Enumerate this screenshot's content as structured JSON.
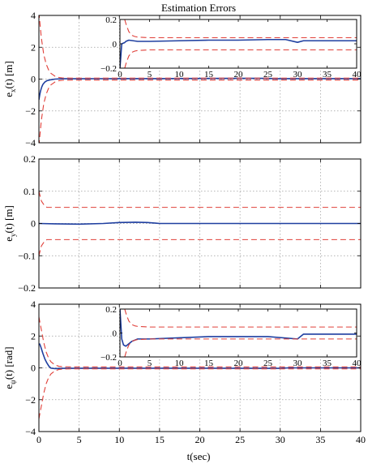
{
  "figure": {
    "title": "Estimation Errors",
    "xlabel": "t(sec)"
  },
  "colors": {
    "error": "#1f3fa0",
    "bound": "#e0403a",
    "grid": "#9a9a9a",
    "axis": "#000000"
  },
  "chart_data": [
    {
      "type": "line",
      "ylabel": {
        "base": "e",
        "sub": "x",
        "rest": "(t) [m]"
      },
      "xlim": [
        0,
        40
      ],
      "ylim": [
        -4,
        4
      ],
      "xticks": [
        "0",
        "5",
        "10",
        "15",
        "20",
        "25",
        "30",
        "35",
        "40"
      ],
      "yticks": [
        "−4",
        "−2",
        "0",
        "2",
        "4"
      ],
      "grid": true,
      "series": [
        {
          "role": "error",
          "style": "solid",
          "color": "#1f3fa0",
          "points": [
            [
              0,
              -1.3
            ],
            [
              0.1,
              -1.0
            ],
            [
              0.2,
              -0.75
            ],
            [
              0.35,
              -0.5
            ],
            [
              0.5,
              -0.33
            ],
            [
              0.75,
              -0.18
            ],
            [
              1,
              -0.1
            ],
            [
              1.5,
              -0.04
            ],
            [
              2,
              0.0
            ],
            [
              3,
              0.02
            ],
            [
              5,
              0.02
            ],
            [
              10,
              0.03
            ],
            [
              15,
              0.03
            ],
            [
              20,
              0.04
            ],
            [
              25,
              0.05
            ],
            [
              28,
              0.05
            ],
            [
              30,
              0.02
            ],
            [
              31,
              0.03
            ],
            [
              35,
              0.03
            ],
            [
              40,
              0.03
            ]
          ]
        },
        {
          "role": "bound-upper",
          "style": "dashed",
          "color": "#e0403a",
          "points": [
            [
              0,
              4.2
            ],
            [
              0.3,
              2.6
            ],
            [
              0.6,
              1.55
            ],
            [
              0.9,
              0.95
            ],
            [
              1.2,
              0.58
            ],
            [
              1.5,
              0.36
            ],
            [
              2,
              0.18
            ],
            [
              2.5,
              0.1
            ],
            [
              3,
              0.07
            ],
            [
              4,
              0.06
            ],
            [
              10,
              0.06
            ],
            [
              40,
              0.06
            ]
          ]
        },
        {
          "role": "bound-lower",
          "style": "dashed",
          "color": "#e0403a",
          "points": [
            [
              0,
              -4.2
            ],
            [
              0.3,
              -2.6
            ],
            [
              0.6,
              -1.55
            ],
            [
              0.9,
              -0.95
            ],
            [
              1.2,
              -0.58
            ],
            [
              1.5,
              -0.36
            ],
            [
              2,
              -0.18
            ],
            [
              2.5,
              -0.1
            ],
            [
              3,
              -0.07
            ],
            [
              4,
              -0.06
            ],
            [
              10,
              -0.06
            ],
            [
              40,
              -0.06
            ]
          ]
        }
      ],
      "inset": {
        "xlim": [
          0,
          40
        ],
        "ylim": [
          -0.2,
          0.2
        ],
        "xticks": [
          "0",
          "5",
          "10",
          "15",
          "20",
          "25",
          "30",
          "35",
          "40"
        ],
        "yticks": [
          "−0.2",
          "0",
          "0.2"
        ],
        "series": [
          {
            "role": "error",
            "style": "solid",
            "color": "#1f3fa0",
            "points": [
              [
                0,
                -0.2
              ],
              [
                0.3,
                0.0
              ],
              [
                0.8,
                0.01
              ],
              [
                1,
                0.02
              ],
              [
                1.5,
                0.03
              ],
              [
                3,
                0.02
              ],
              [
                5,
                0.02
              ],
              [
                10,
                0.025
              ],
              [
                15,
                0.03
              ],
              [
                20,
                0.03
              ],
              [
                25,
                0.035
              ],
              [
                28,
                0.035
              ],
              [
                30,
                0.012
              ],
              [
                31,
                0.025
              ],
              [
                35,
                0.025
              ],
              [
                40,
                0.025
              ]
            ]
          },
          {
            "role": "bound-upper",
            "style": "dashed",
            "color": "#e0403a",
            "points": [
              [
                0.8,
                0.2
              ],
              [
                1.1,
                0.15
              ],
              [
                1.5,
                0.1
              ],
              [
                2,
                0.07
              ],
              [
                2.5,
                0.06
              ],
              [
                3,
                0.055
              ],
              [
                5,
                0.05
              ],
              [
                40,
                0.05
              ]
            ]
          },
          {
            "role": "bound-lower",
            "style": "dashed",
            "color": "#e0403a",
            "points": [
              [
                0.8,
                -0.2
              ],
              [
                1.1,
                -0.15
              ],
              [
                1.5,
                -0.1
              ],
              [
                2,
                -0.07
              ],
              [
                2.5,
                -0.06
              ],
              [
                3,
                -0.055
              ],
              [
                5,
                -0.05
              ],
              [
                40,
                -0.05
              ]
            ]
          }
        ]
      }
    },
    {
      "type": "line",
      "ylabel": {
        "base": "e",
        "sub": "y",
        "rest": "(t) [m]"
      },
      "xlim": [
        0,
        40
      ],
      "ylim": [
        -0.2,
        0.2
      ],
      "xticks": [
        "0",
        "5",
        "10",
        "15",
        "20",
        "25",
        "30",
        "35",
        "40"
      ],
      "yticks": [
        "−0.2",
        "−0.1",
        "0",
        "0.1",
        "0.2"
      ],
      "grid": true,
      "series": [
        {
          "role": "error",
          "style": "solid",
          "color": "#1f3fa0",
          "points": [
            [
              0,
              0.0
            ],
            [
              2,
              -0.001
            ],
            [
              5,
              -0.002
            ],
            [
              8,
              0.0
            ],
            [
              10,
              0.003
            ],
            [
              12,
              0.004
            ],
            [
              13.5,
              0.003
            ],
            [
              14.5,
              0.001
            ],
            [
              15,
              0.0
            ],
            [
              20,
              0.0
            ],
            [
              30,
              0.0
            ],
            [
              40,
              0.0
            ]
          ]
        },
        {
          "role": "bound-upper",
          "style": "dashed",
          "color": "#e0403a",
          "points": [
            [
              0,
              0.1
            ],
            [
              0.3,
              0.07
            ],
            [
              0.7,
              0.055
            ],
            [
              1,
              0.05
            ],
            [
              40,
              0.05
            ]
          ]
        },
        {
          "role": "bound-lower",
          "style": "dashed",
          "color": "#e0403a",
          "points": [
            [
              0,
              -0.1
            ],
            [
              0.3,
              -0.07
            ],
            [
              0.7,
              -0.055
            ],
            [
              1,
              -0.05
            ],
            [
              40,
              -0.05
            ]
          ]
        }
      ]
    },
    {
      "type": "line",
      "ylabel": {
        "base": "e",
        "sub": "ψ",
        "rest": "(t) [rad]"
      },
      "xlim": [
        0,
        40
      ],
      "ylim": [
        -4,
        4
      ],
      "xticks": [
        "0",
        "5",
        "10",
        "15",
        "20",
        "25",
        "30",
        "35",
        "40"
      ],
      "yticks": [
        "−4",
        "−2",
        "0",
        "2",
        "4"
      ],
      "grid": true,
      "series": [
        {
          "role": "error",
          "style": "solid",
          "color": "#1f3fa0",
          "points": [
            [
              0,
              1.5
            ],
            [
              0.1,
              1.5
            ],
            [
              0.25,
              1.3
            ],
            [
              0.5,
              0.9
            ],
            [
              0.75,
              0.55
            ],
            [
              1,
              0.3
            ],
            [
              1.25,
              0.1
            ],
            [
              1.5,
              -0.02
            ],
            [
              2,
              -0.05
            ],
            [
              3,
              -0.03
            ],
            [
              10,
              -0.02
            ],
            [
              20,
              -0.02
            ],
            [
              30,
              -0.03
            ],
            [
              31,
              0.0
            ],
            [
              35,
              0.0
            ],
            [
              40,
              0.0
            ]
          ]
        },
        {
          "role": "bound-upper",
          "style": "dashed",
          "color": "#e0403a",
          "points": [
            [
              0,
              3.2
            ],
            [
              0.3,
              2.4
            ],
            [
              0.6,
              1.6
            ],
            [
              0.9,
              1.0
            ],
            [
              1.2,
              0.62
            ],
            [
              1.5,
              0.38
            ],
            [
              2,
              0.18
            ],
            [
              2.5,
              0.1
            ],
            [
              3,
              0.07
            ],
            [
              4,
              0.06
            ],
            [
              10,
              0.06
            ],
            [
              40,
              0.06
            ]
          ]
        },
        {
          "role": "bound-lower",
          "style": "dashed",
          "color": "#e0403a",
          "points": [
            [
              0,
              -3.2
            ],
            [
              0.3,
              -2.4
            ],
            [
              0.6,
              -1.6
            ],
            [
              0.9,
              -1.0
            ],
            [
              1.2,
              -0.62
            ],
            [
              1.5,
              -0.38
            ],
            [
              2,
              -0.18
            ],
            [
              2.5,
              -0.1
            ],
            [
              3,
              -0.07
            ],
            [
              4,
              -0.06
            ],
            [
              10,
              -0.06
            ],
            [
              40,
              -0.06
            ]
          ]
        }
      ],
      "inset": {
        "xlim": [
          0,
          40
        ],
        "ylim": [
          -0.2,
          0.2
        ],
        "xticks": [
          "0",
          "5",
          "10",
          "15",
          "20",
          "25",
          "30",
          "35",
          "40"
        ],
        "yticks": [
          "−0.2",
          "0",
          "0.2"
        ],
        "series": [
          {
            "role": "error",
            "style": "solid",
            "color": "#1f3fa0",
            "points": [
              [
                0,
                0.2
              ],
              [
                0.3,
                -0.05
              ],
              [
                0.6,
                -0.1
              ],
              [
                1,
                -0.11
              ],
              [
                1.5,
                -0.09
              ],
              [
                2,
                -0.07
              ],
              [
                3,
                -0.05
              ],
              [
                5,
                -0.05
              ],
              [
                10,
                -0.04
              ],
              [
                15,
                -0.03
              ],
              [
                20,
                -0.03
              ],
              [
                25,
                -0.03
              ],
              [
                30,
                -0.05
              ],
              [
                31,
                -0.01
              ],
              [
                35,
                -0.01
              ],
              [
                40,
                -0.01
              ]
            ]
          },
          {
            "role": "bound-upper",
            "style": "dashed",
            "color": "#e0403a",
            "points": [
              [
                0.8,
                0.2
              ],
              [
                1.1,
                0.15
              ],
              [
                1.5,
                0.1
              ],
              [
                2,
                0.07
              ],
              [
                2.5,
                0.06
              ],
              [
                3,
                0.055
              ],
              [
                5,
                0.05
              ],
              [
                40,
                0.05
              ]
            ]
          },
          {
            "role": "bound-lower",
            "style": "dashed",
            "color": "#e0403a",
            "points": [
              [
                0.8,
                -0.2
              ],
              [
                1.1,
                -0.15
              ],
              [
                1.5,
                -0.1
              ],
              [
                2,
                -0.07
              ],
              [
                2.5,
                -0.06
              ],
              [
                3,
                -0.055
              ],
              [
                5,
                -0.05
              ],
              [
                40,
                -0.05
              ]
            ]
          }
        ]
      }
    }
  ]
}
